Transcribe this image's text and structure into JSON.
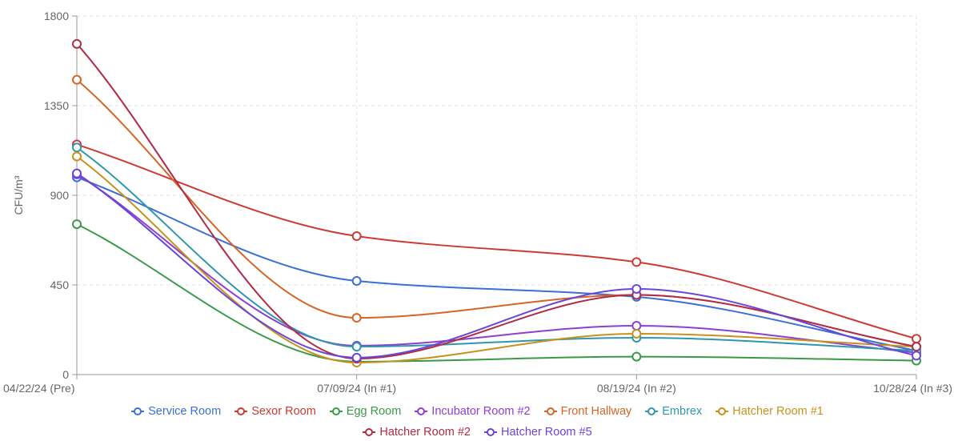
{
  "chart_data": {
    "type": "line",
    "title": "",
    "xlabel": "",
    "ylabel": "CFU/m³",
    "categories": [
      "04/22/24 (Pre)",
      "07/09/24 (In #1)",
      "08/19/24 (In #2)",
      "10/28/24 (In #3)"
    ],
    "ylim": [
      0,
      1800
    ],
    "yticks": [
      0,
      450,
      900,
      1350,
      1800
    ],
    "grid": true,
    "legend_position": "bottom",
    "series": [
      {
        "name": "Service Room",
        "color": "#3b6fd8",
        "values": [
          990,
          470,
          390,
          120
        ]
      },
      {
        "name": "Sexor Room",
        "color": "#cc3b33",
        "values": [
          1155,
          695,
          565,
          180
        ]
      },
      {
        "name": "Egg Room",
        "color": "#3a9a48",
        "values": [
          755,
          65,
          90,
          70
        ]
      },
      {
        "name": "Incubator Room #2",
        "color": "#8e3fd0",
        "values": [
          1005,
          145,
          245,
          110
        ]
      },
      {
        "name": "Front Hallway",
        "color": "#d66528",
        "values": [
          1480,
          285,
          400,
          140
        ]
      },
      {
        "name": "Embrex",
        "color": "#2f97ad",
        "values": [
          1140,
          140,
          185,
          120
        ]
      },
      {
        "name": "Hatcher Room #1",
        "color": "#c8911c",
        "values": [
          1095,
          60,
          205,
          140
        ]
      },
      {
        "name": "Hatcher Room #2",
        "color": "#b02c47",
        "values": [
          1660,
          80,
          400,
          140
        ]
      },
      {
        "name": "Hatcher Room #5",
        "color": "#6a45da",
        "values": [
          1010,
          85,
          430,
          95
        ]
      }
    ]
  }
}
